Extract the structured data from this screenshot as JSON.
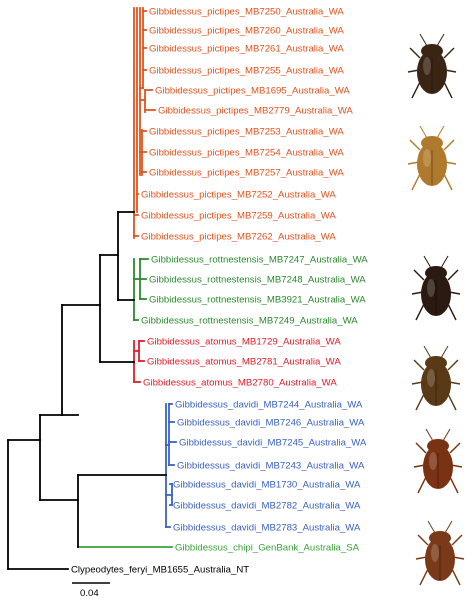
{
  "colors": {
    "pictipes": "#e2531e",
    "rottnestensis": "#2b8a2e",
    "atomus": "#e01e2a",
    "davidi": "#3a62c2",
    "chipi": "#3aa23a",
    "outgroup": "#000000",
    "backbone": "#000000"
  },
  "taxa": [
    {
      "label": "Gibbidessus_pictipes_MB7250_Australia_WA",
      "group": "pictipes"
    },
    {
      "label": "Gibbidessus_pictipes_MB7260_Australia_WA",
      "group": "pictipes"
    },
    {
      "label": "Gibbidessus_pictipes_MB7261_Australia_WA",
      "group": "pictipes"
    },
    {
      "label": "Gibbidessus_pictipes_MB7255_Australia_WA",
      "group": "pictipes"
    },
    {
      "label": "Gibbidessus_pictipes_MB1695_Australia_WA",
      "group": "pictipes"
    },
    {
      "label": "Gibbidessus_pictipes_MB2779_Australia_WA",
      "group": "pictipes"
    },
    {
      "label": "Gibbidessus_pictipes_MB7253_Australia_WA",
      "group": "pictipes"
    },
    {
      "label": "Gibbidessus_pictipes_MB7254_Australia_WA",
      "group": "pictipes"
    },
    {
      "label": "Gibbidessus_pictipes_MB7257_Australia_WA",
      "group": "pictipes"
    },
    {
      "label": "Gibbidessus_pictipes_MB7252_Australia_WA",
      "group": "pictipes"
    },
    {
      "label": "Gibbidessus_pictipes_MB7259_Australia_WA",
      "group": "pictipes"
    },
    {
      "label": "Gibbidessus_pictipes_MB7262_Australia_WA",
      "group": "pictipes"
    },
    {
      "label": "Gibbidessus_rottnestensis_MB7247_Australia_WA",
      "group": "rottnestensis"
    },
    {
      "label": "Gibbidessus_rottnestensis_MB7248_Australia_WA",
      "group": "rottnestensis"
    },
    {
      "label": "Gibbidessus_rottnestensis_MB3921_Australia_WA",
      "group": "rottnestensis"
    },
    {
      "label": "Gibbidessus_rottnestensis_MB7249_Australia_WA",
      "group": "rottnestensis"
    },
    {
      "label": "Gibbidessus_atomus_MB1729_Australia_WA",
      "group": "atomus"
    },
    {
      "label": "Gibbidessus_atomus_MB2781_Australia_WA",
      "group": "atomus"
    },
    {
      "label": "Gibbidessus_atomus_MB2780_Australia_WA",
      "group": "atomus"
    },
    {
      "label": "Gibbidessus_davidi_MB7244_Australia_WA",
      "group": "davidi"
    },
    {
      "label": "Gibbidessus_davidi_MB7246_Australia_WA",
      "group": "davidi"
    },
    {
      "label": "Gibbidessus_davidi_MB7245_Australia_WA",
      "group": "davidi"
    },
    {
      "label": "Gibbidessus_davidi_MB7243_Australia_WA",
      "group": "davidi"
    },
    {
      "label": "Gibbidessus_davidi_MB1730_Australia_WA",
      "group": "davidi"
    },
    {
      "label": "Gibbidessus_davidi_MB2782_Australia_WA",
      "group": "davidi"
    },
    {
      "label": "Gibbidessus_davidi_MB2783_Australia_WA",
      "group": "davidi"
    },
    {
      "label": "Gibbidessus_chipi_GenBank_Australia_SA",
      "group": "chipi"
    },
    {
      "label": "Clypeodytes_feryi_MB1655_Australia_NT",
      "group": "outgroup"
    }
  ],
  "scale_bar": {
    "value": 0.04,
    "label": "0.04"
  },
  "beetle_photos": [
    {
      "name": "pictipes-beetle-photo-1",
      "tone": "#3a2414"
    },
    {
      "name": "pictipes-beetle-photo-2",
      "tone": "#b07a2e"
    },
    {
      "name": "rottnestensis-beetle-photo",
      "tone": "#2a1a12"
    },
    {
      "name": "atomus-beetle-photo",
      "tone": "#5a3a16"
    },
    {
      "name": "davidi-beetle-photo",
      "tone": "#7a3214"
    },
    {
      "name": "chipi-beetle-photo",
      "tone": "#7a3a1a"
    }
  ]
}
